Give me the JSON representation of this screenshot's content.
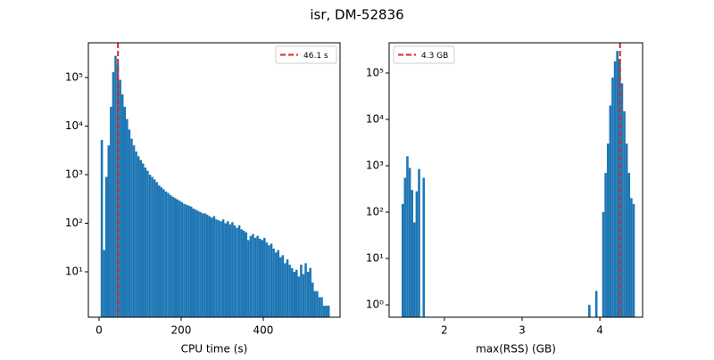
{
  "title": "isr, DM-52836",
  "chart_data": [
    {
      "type": "histogram",
      "xlabel": "CPU time (s)",
      "color": "#1f77b4",
      "yscale": "log",
      "xlim": [
        -26,
        587
      ],
      "ylim": [
        1.16,
        520000
      ],
      "xticks": [
        0,
        200,
        400
      ],
      "yticks": [
        {
          "value": 10,
          "label": "10¹"
        },
        {
          "value": 100,
          "label": "10²"
        },
        {
          "value": 1000,
          "label": "10³"
        },
        {
          "value": 10000,
          "label": "10⁴"
        },
        {
          "value": 100000,
          "label": "10⁵"
        }
      ],
      "vline": {
        "value": 46.1,
        "label": "46.1 s",
        "color": "#d62728"
      },
      "legend": "upper right",
      "bins": [
        4,
        9.58,
        15.16,
        20.74,
        26.32,
        31.9,
        37.48,
        43.06,
        48.64,
        54.22,
        59.8,
        65.38,
        70.96,
        76.54,
        82.12,
        87.7,
        93.28,
        98.86,
        104.44,
        110.02,
        115.6,
        121.18,
        126.76,
        132.34,
        137.92,
        143.5,
        149.08,
        154.66,
        160.24,
        165.82,
        171.4,
        176.98,
        182.56,
        188.14,
        193.72,
        199.3,
        204.88,
        210.46,
        216.04,
        221.62,
        227.2,
        232.78,
        238.36,
        243.94,
        249.52,
        255.1,
        260.68,
        266.26,
        271.84,
        277.42,
        283,
        288.58,
        294.16,
        299.74,
        305.32,
        310.9,
        316.48,
        322.06,
        327.64,
        333.22,
        338.8,
        344.38,
        349.96,
        355.54,
        361.12,
        366.7,
        372.28,
        377.86,
        383.44,
        389.02,
        394.6,
        400.18,
        405.76,
        411.34,
        416.92,
        422.5,
        428.08,
        433.66,
        439.24,
        444.82,
        450.4,
        455.98,
        461.56,
        467.14,
        472.72,
        478.3,
        483.88,
        489.46,
        495.04,
        500.62,
        506.2,
        511.78,
        517.36,
        522.94,
        528.52,
        534.1,
        539.68,
        545.26,
        550.84,
        556.42,
        562
      ],
      "values": [
        5200,
        28,
        900,
        4000,
        25000,
        130000,
        280000,
        190000,
        90000,
        45000,
        25000,
        14000,
        8500,
        5500,
        4000,
        3000,
        2400,
        2000,
        1700,
        1400,
        1200,
        1000,
        900,
        800,
        700,
        600,
        550,
        500,
        450,
        420,
        380,
        350,
        330,
        310,
        290,
        270,
        250,
        240,
        230,
        220,
        200,
        190,
        180,
        170,
        160,
        160,
        150,
        140,
        130,
        140,
        120,
        115,
        110,
        120,
        100,
        110,
        95,
        105,
        90,
        80,
        90,
        75,
        70,
        65,
        45,
        55,
        60,
        50,
        55,
        48,
        45,
        50,
        40,
        35,
        38,
        30,
        25,
        28,
        20,
        22,
        15,
        18,
        14,
        12,
        10,
        11,
        8,
        14,
        9,
        15,
        10,
        12,
        6,
        4,
        4,
        3,
        3,
        2,
        2,
        2
      ]
    },
    {
      "type": "histogram",
      "xlabel": "max(RSS) (GB)",
      "color": "#1f77b4",
      "yscale": "log",
      "xlim": [
        1.29,
        4.55
      ],
      "ylim": [
        0.54,
        450000
      ],
      "xticks": [
        2,
        3,
        4
      ],
      "yticks": [
        {
          "value": 1,
          "label": "10⁰"
        },
        {
          "value": 10,
          "label": "10¹"
        },
        {
          "value": 100,
          "label": "10²"
        },
        {
          "value": 1000,
          "label": "10³"
        },
        {
          "value": 10000,
          "label": "10⁴"
        },
        {
          "value": 100000,
          "label": "10⁵"
        }
      ],
      "vline": {
        "value": 4.26,
        "label": "4.3 GB",
        "color": "#d62728"
      },
      "legend": "upper left",
      "bins": [
        1.45,
        1.48,
        1.51,
        1.54,
        1.57,
        1.6,
        1.63,
        1.66,
        1.69,
        1.72,
        1.75,
        1.78,
        1.81,
        1.84,
        1.87,
        1.9,
        1.93,
        1.96,
        1.99,
        2.02,
        2.05,
        2.08,
        2.11,
        2.14,
        2.17,
        2.2,
        2.23,
        2.26,
        2.29,
        2.32,
        2.35,
        2.38,
        2.41,
        2.44,
        2.47,
        2.5,
        2.53,
        2.56,
        2.59,
        2.62,
        2.65,
        2.68,
        2.71,
        2.74,
        2.77,
        2.8,
        2.83,
        2.86,
        2.89,
        2.92,
        2.95,
        2.98,
        3.01,
        3.04,
        3.07,
        3.1,
        3.13,
        3.16,
        3.19,
        3.22,
        3.25,
        3.28,
        3.31,
        3.34,
        3.37,
        3.4,
        3.43,
        3.46,
        3.49,
        3.52,
        3.55,
        3.58,
        3.61,
        3.64,
        3.67,
        3.7,
        3.73,
        3.76,
        3.79,
        3.82,
        3.85,
        3.88,
        3.91,
        3.94,
        3.97,
        4,
        4.03,
        4.06,
        4.09,
        4.12,
        4.15,
        4.18,
        4.21,
        4.24,
        4.27,
        4.3,
        4.33,
        4.36,
        4.39,
        4.42,
        4.45
      ],
      "values": [
        150,
        550,
        1600,
        900,
        300,
        60,
        280,
        850,
        0,
        550,
        0,
        0,
        0,
        0,
        0,
        0,
        0,
        0,
        0,
        0,
        0,
        0,
        0,
        0,
        0,
        0,
        0,
        0,
        0,
        0,
        0,
        0,
        0,
        0,
        0,
        0,
        0,
        0,
        0,
        0,
        0,
        0,
        0,
        0,
        0,
        0,
        0,
        0,
        0,
        0,
        0,
        0,
        0,
        0,
        0,
        0,
        0,
        0,
        0,
        0,
        0,
        0,
        0,
        0,
        0,
        0,
        0,
        0,
        0,
        0,
        0,
        0,
        0,
        0,
        0,
        0,
        0,
        0,
        0,
        0,
        1,
        0,
        0,
        2,
        0,
        0,
        100,
        700,
        3000,
        20000,
        80000,
        180000,
        300000,
        200000,
        60000,
        15000,
        3000,
        700,
        200,
        150
      ]
    }
  ]
}
